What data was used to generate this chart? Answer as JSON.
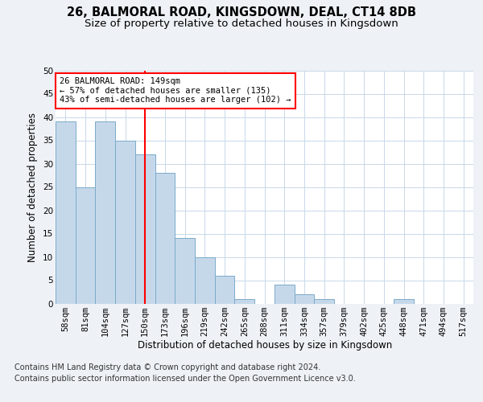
{
  "title1": "26, BALMORAL ROAD, KINGSDOWN, DEAL, CT14 8DB",
  "title2": "Size of property relative to detached houses in Kingsdown",
  "xlabel": "Distribution of detached houses by size in Kingsdown",
  "ylabel": "Number of detached properties",
  "categories": [
    "58sqm",
    "81sqm",
    "104sqm",
    "127sqm",
    "150sqm",
    "173sqm",
    "196sqm",
    "219sqm",
    "242sqm",
    "265sqm",
    "288sqm",
    "311sqm",
    "334sqm",
    "357sqm",
    "379sqm",
    "402sqm",
    "425sqm",
    "448sqm",
    "471sqm",
    "494sqm",
    "517sqm"
  ],
  "values": [
    39,
    25,
    39,
    35,
    32,
    28,
    14,
    10,
    6,
    1,
    0,
    4,
    2,
    1,
    0,
    0,
    0,
    1,
    0,
    0,
    0
  ],
  "bar_color": "#c5d8ea",
  "bar_edge_color": "#7baac9",
  "vline_x": 4,
  "annotation_text": "26 BALMORAL ROAD: 149sqm\n← 57% of detached houses are smaller (135)\n43% of semi-detached houses are larger (102) →",
  "annotation_box_color": "white",
  "annotation_box_edge_color": "red",
  "vline_color": "red",
  "ylim": [
    0,
    50
  ],
  "yticks": [
    0,
    5,
    10,
    15,
    20,
    25,
    30,
    35,
    40,
    45,
    50
  ],
  "footnote1": "Contains HM Land Registry data © Crown copyright and database right 2024.",
  "footnote2": "Contains public sector information licensed under the Open Government Licence v3.0.",
  "bg_color": "#eef2f7",
  "plot_bg_color": "white",
  "grid_color": "#c8d8e8",
  "title_fontsize": 10.5,
  "subtitle_fontsize": 9.5,
  "axis_label_fontsize": 8.5,
  "tick_fontsize": 7.5,
  "footnote_fontsize": 7.0,
  "annotation_fontsize": 7.5
}
